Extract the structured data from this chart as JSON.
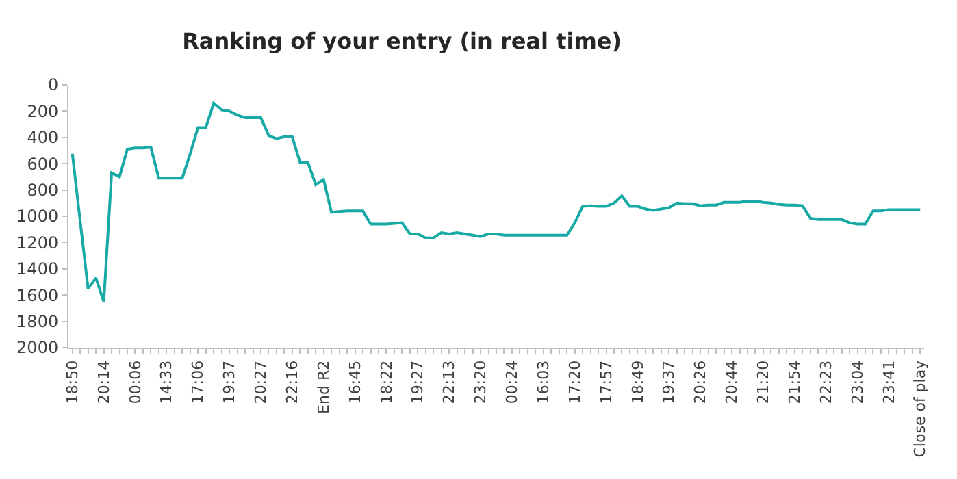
{
  "chart_data": {
    "type": "line",
    "title": "Ranking of your entry (in real time)",
    "categories": [
      "18:50",
      null,
      null,
      null,
      "20:14",
      null,
      null,
      null,
      "00:06",
      null,
      null,
      null,
      "14:33",
      null,
      null,
      null,
      "17:06",
      null,
      null,
      null,
      "19:37",
      null,
      null,
      null,
      "20:27",
      null,
      null,
      null,
      "22:16",
      null,
      null,
      null,
      "End R2",
      null,
      null,
      null,
      "16:45",
      null,
      null,
      null,
      "18:22",
      null,
      null,
      null,
      "19:27",
      null,
      null,
      null,
      "22:13",
      null,
      null,
      null,
      "23:20",
      null,
      null,
      null,
      "00:24",
      null,
      null,
      null,
      "16:03",
      null,
      null,
      null,
      "17:20",
      null,
      null,
      null,
      "17:57",
      null,
      null,
      null,
      "18:49",
      null,
      null,
      null,
      "19:37",
      null,
      null,
      null,
      "20:26",
      null,
      null,
      null,
      "20:44",
      null,
      null,
      null,
      "21:20",
      null,
      null,
      null,
      "21:54",
      null,
      null,
      null,
      "22:23",
      null,
      null,
      null,
      "23:04",
      null,
      null,
      null,
      "23:41",
      null,
      null,
      null,
      "Close of play"
    ],
    "series": [
      {
        "color": "#17a9a6",
        "values": [
          525,
          1040,
          1550,
          1470,
          1650,
          670,
          700,
          490,
          480,
          480,
          475,
          710,
          710,
          710,
          710,
          525,
          325,
          325,
          140,
          190,
          200,
          230,
          250,
          250,
          250,
          385,
          410,
          395,
          395,
          590,
          590,
          760,
          720,
          970,
          965,
          960,
          960,
          960,
          1060,
          1060,
          1060,
          1055,
          1050,
          1135,
          1135,
          1165,
          1165,
          1125,
          1135,
          1125,
          1135,
          1145,
          1155,
          1135,
          1135,
          1145,
          1145,
          1145,
          1145,
          1145,
          1145,
          1145,
          1145,
          1145,
          1050,
          925,
          920,
          925,
          925,
          900,
          845,
          925,
          925,
          945,
          955,
          945,
          935,
          900,
          905,
          905,
          920,
          915,
          915,
          895,
          895,
          895,
          885,
          885,
          895,
          900,
          910,
          915,
          915,
          920,
          1015,
          1025,
          1025,
          1025,
          1025,
          1050,
          1060,
          1060,
          960,
          960,
          950,
          950,
          950,
          950,
          950
        ]
      }
    ],
    "ylim": [
      2000,
      0
    ],
    "yticks": [
      0,
      200,
      400,
      600,
      800,
      1000,
      1200,
      1400,
      1600,
      1800,
      2000
    ],
    "marker": "none",
    "line_style": "solid"
  }
}
